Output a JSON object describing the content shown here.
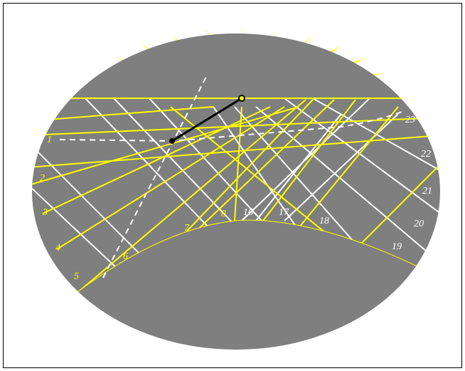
{
  "dial": {
    "background": "#ffffff",
    "frame_color": "#000000",
    "plate_color": "#7f7f7f",
    "line_yellow": "#ffff00",
    "line_white": "#ffffff",
    "gnomon_color": "#000000"
  },
  "hour_labels_left": [
    "1",
    "2",
    "3",
    "4",
    "5",
    "6",
    "7",
    "8"
  ],
  "hour_labels_right": [
    "16",
    "17",
    "18",
    "19",
    "20",
    "21",
    "22",
    "23"
  ]
}
